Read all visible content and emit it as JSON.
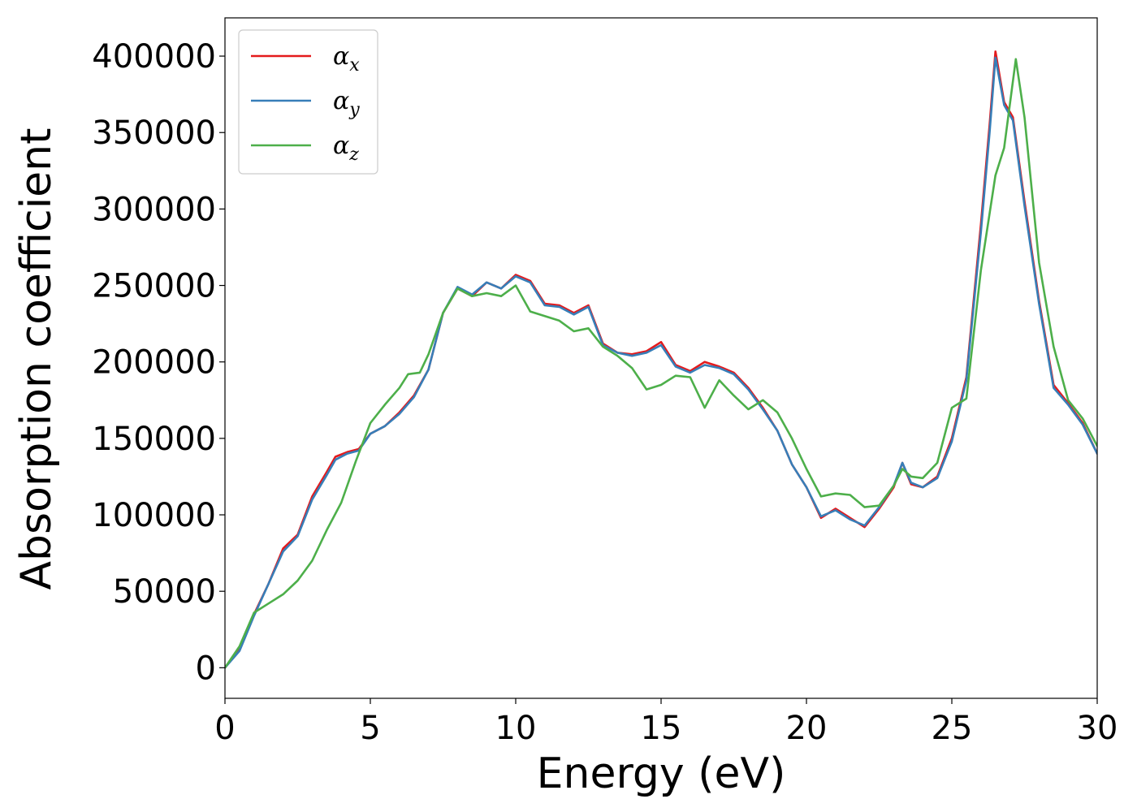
{
  "chart_data": {
    "type": "line",
    "xlabel": "Energy (eV)",
    "ylabel": "Absorption coefficient",
    "xlim": [
      0,
      30
    ],
    "ylim": [
      -20000,
      425000
    ],
    "xticks": [
      0,
      5,
      10,
      15,
      20,
      25,
      30
    ],
    "yticks": [
      0,
      50000,
      100000,
      150000,
      200000,
      250000,
      300000,
      350000,
      400000
    ],
    "grid": false,
    "legend_position": "top-left",
    "series": [
      {
        "name": "α",
        "sub": "x",
        "color": "#e41a1c",
        "points": [
          [
            0,
            0
          ],
          [
            0.5,
            12000
          ],
          [
            1,
            35000
          ],
          [
            1.5,
            55000
          ],
          [
            2,
            78000
          ],
          [
            2.5,
            87000
          ],
          [
            3,
            112000
          ],
          [
            3.5,
            128000
          ],
          [
            3.8,
            138000
          ],
          [
            4.2,
            141000
          ],
          [
            4.6,
            143000
          ],
          [
            5,
            153000
          ],
          [
            5.5,
            158000
          ],
          [
            6,
            167000
          ],
          [
            6.5,
            178000
          ],
          [
            7,
            195000
          ],
          [
            7.5,
            232000
          ],
          [
            8,
            248000
          ],
          [
            8.5,
            243000
          ],
          [
            9,
            252000
          ],
          [
            9.5,
            248000
          ],
          [
            10,
            257000
          ],
          [
            10.5,
            253000
          ],
          [
            11,
            238000
          ],
          [
            11.5,
            237000
          ],
          [
            12,
            232000
          ],
          [
            12.5,
            237000
          ],
          [
            13,
            212000
          ],
          [
            13.5,
            206000
          ],
          [
            14,
            205000
          ],
          [
            14.5,
            207000
          ],
          [
            15,
            213000
          ],
          [
            15.5,
            198000
          ],
          [
            16,
            194000
          ],
          [
            16.5,
            200000
          ],
          [
            17,
            197000
          ],
          [
            17.5,
            193000
          ],
          [
            18,
            183000
          ],
          [
            18.5,
            170000
          ],
          [
            19,
            155000
          ],
          [
            19.5,
            133000
          ],
          [
            20,
            118000
          ],
          [
            20.5,
            98000
          ],
          [
            21,
            104000
          ],
          [
            21.5,
            98000
          ],
          [
            22,
            92000
          ],
          [
            22.5,
            104000
          ],
          [
            23,
            118000
          ],
          [
            23.3,
            134000
          ],
          [
            23.6,
            120000
          ],
          [
            24,
            118000
          ],
          [
            24.5,
            125000
          ],
          [
            25,
            150000
          ],
          [
            25.5,
            190000
          ],
          [
            26,
            290000
          ],
          [
            26.3,
            355000
          ],
          [
            26.5,
            403000
          ],
          [
            26.8,
            370000
          ],
          [
            27.1,
            360000
          ],
          [
            27.5,
            305000
          ],
          [
            28,
            240000
          ],
          [
            28.5,
            185000
          ],
          [
            29,
            173000
          ],
          [
            29.5,
            160000
          ],
          [
            30,
            140000
          ]
        ]
      },
      {
        "name": "α",
        "sub": "y",
        "color": "#377eb8",
        "points": [
          [
            0,
            0
          ],
          [
            0.5,
            11000
          ],
          [
            1,
            34000
          ],
          [
            1.5,
            55000
          ],
          [
            2,
            76000
          ],
          [
            2.5,
            86000
          ],
          [
            3,
            110000
          ],
          [
            3.5,
            126000
          ],
          [
            3.8,
            136000
          ],
          [
            4.2,
            140000
          ],
          [
            4.6,
            142000
          ],
          [
            5,
            153000
          ],
          [
            5.5,
            158000
          ],
          [
            6,
            166000
          ],
          [
            6.5,
            177000
          ],
          [
            7,
            195000
          ],
          [
            7.5,
            232000
          ],
          [
            8,
            249000
          ],
          [
            8.5,
            244000
          ],
          [
            9,
            252000
          ],
          [
            9.5,
            248000
          ],
          [
            10,
            256000
          ],
          [
            10.5,
            252000
          ],
          [
            11,
            237000
          ],
          [
            11.5,
            236000
          ],
          [
            12,
            231000
          ],
          [
            12.5,
            236000
          ],
          [
            13,
            211000
          ],
          [
            13.5,
            206000
          ],
          [
            14,
            204000
          ],
          [
            14.5,
            206000
          ],
          [
            15,
            211000
          ],
          [
            15.5,
            197000
          ],
          [
            16,
            193000
          ],
          [
            16.5,
            198000
          ],
          [
            17,
            196000
          ],
          [
            17.5,
            192000
          ],
          [
            18,
            182000
          ],
          [
            18.5,
            169000
          ],
          [
            19,
            155000
          ],
          [
            19.5,
            133000
          ],
          [
            20,
            118000
          ],
          [
            20.5,
            99000
          ],
          [
            21,
            103000
          ],
          [
            21.5,
            97000
          ],
          [
            22,
            93000
          ],
          [
            22.5,
            105000
          ],
          [
            23,
            119000
          ],
          [
            23.3,
            134000
          ],
          [
            23.6,
            121000
          ],
          [
            24,
            118000
          ],
          [
            24.5,
            124000
          ],
          [
            25,
            148000
          ],
          [
            25.5,
            188000
          ],
          [
            26,
            285000
          ],
          [
            26.3,
            350000
          ],
          [
            26.5,
            399000
          ],
          [
            26.8,
            368000
          ],
          [
            27.1,
            358000
          ],
          [
            27.5,
            302000
          ],
          [
            28,
            238000
          ],
          [
            28.5,
            183000
          ],
          [
            29,
            172000
          ],
          [
            29.5,
            159000
          ],
          [
            30,
            140000
          ]
        ]
      },
      {
        "name": "α",
        "sub": "z",
        "color": "#4daf4a",
        "points": [
          [
            0,
            0
          ],
          [
            0.5,
            14000
          ],
          [
            1,
            36000
          ],
          [
            1.5,
            42000
          ],
          [
            2,
            48000
          ],
          [
            2.5,
            57000
          ],
          [
            3,
            70000
          ],
          [
            3.5,
            90000
          ],
          [
            4,
            108000
          ],
          [
            4.5,
            135000
          ],
          [
            5,
            160000
          ],
          [
            5.5,
            172000
          ],
          [
            6,
            183000
          ],
          [
            6.3,
            192000
          ],
          [
            6.7,
            193000
          ],
          [
            7,
            205000
          ],
          [
            7.5,
            232000
          ],
          [
            8,
            248000
          ],
          [
            8.5,
            243000
          ],
          [
            9,
            245000
          ],
          [
            9.5,
            243000
          ],
          [
            10,
            250000
          ],
          [
            10.5,
            233000
          ],
          [
            11,
            230000
          ],
          [
            11.5,
            227000
          ],
          [
            12,
            220000
          ],
          [
            12.5,
            222000
          ],
          [
            13,
            210000
          ],
          [
            13.5,
            204000
          ],
          [
            14,
            196000
          ],
          [
            14.5,
            182000
          ],
          [
            15,
            185000
          ],
          [
            15.5,
            191000
          ],
          [
            16,
            190000
          ],
          [
            16.5,
            170000
          ],
          [
            17,
            188000
          ],
          [
            17.5,
            178000
          ],
          [
            18,
            169000
          ],
          [
            18.5,
            175000
          ],
          [
            19,
            167000
          ],
          [
            19.5,
            150000
          ],
          [
            20,
            130000
          ],
          [
            20.5,
            112000
          ],
          [
            21,
            114000
          ],
          [
            21.5,
            113000
          ],
          [
            22,
            105000
          ],
          [
            22.5,
            106000
          ],
          [
            23,
            119000
          ],
          [
            23.3,
            130000
          ],
          [
            23.6,
            125000
          ],
          [
            24,
            124000
          ],
          [
            24.5,
            134000
          ],
          [
            25,
            170000
          ],
          [
            25.5,
            176000
          ],
          [
            26,
            260000
          ],
          [
            26.5,
            322000
          ],
          [
            26.8,
            340000
          ],
          [
            27.2,
            398000
          ],
          [
            27.5,
            360000
          ],
          [
            28,
            265000
          ],
          [
            28.5,
            210000
          ],
          [
            29,
            175000
          ],
          [
            29.5,
            163000
          ],
          [
            30,
            145000
          ]
        ]
      }
    ]
  }
}
